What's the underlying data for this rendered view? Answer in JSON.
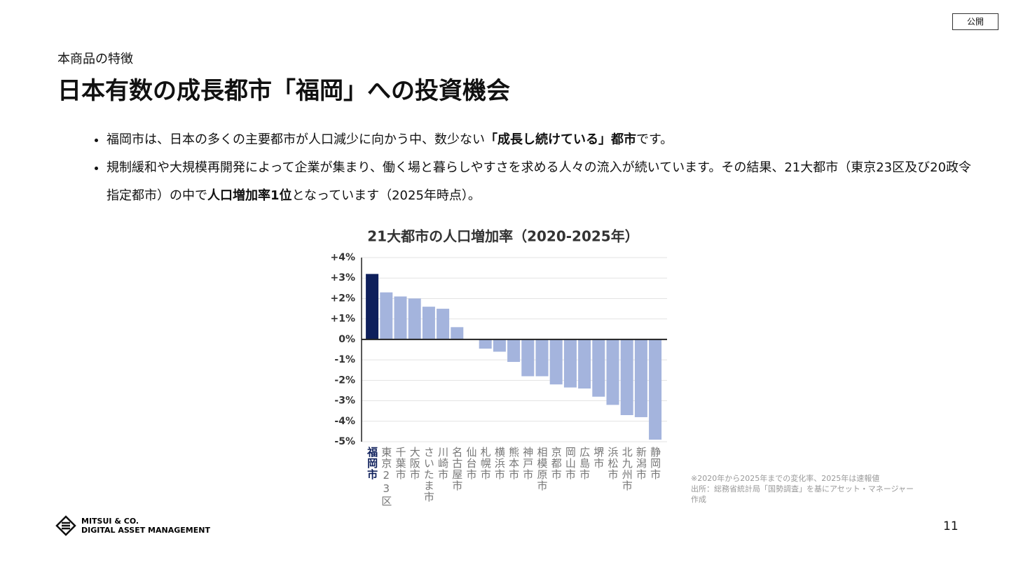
{
  "badge": "公開",
  "header": {
    "kicker": "本商品の特徴",
    "title": "日本有数の成長都市「福岡」への投資機会"
  },
  "bullets": [
    {
      "before": "福岡市は、日本の多くの主要都市が人口減少に向かう中、数少ない",
      "bold": "「成長し続けている」都市",
      "after": "です。"
    },
    {
      "before": "規制緩和や大規模再開発によって企業が集まり、働く場と暮らしやすさを求める人々の流入が続いています。その結果、21大都市（東京23区及び20政令指定都市）の中で",
      "bold": "人口増加率1位",
      "after": "となっています（2025年時点）。"
    }
  ],
  "chart_data": {
    "type": "bar",
    "title": "21大都市の人口増加率（2020-2025年）",
    "categories": [
      "福岡市",
      "東京23区",
      "千葉市",
      "大阪市",
      "さいたま市",
      "川崎市",
      "名古屋市",
      "仙台市",
      "札幌市",
      "横浜市",
      "熊本市",
      "神戸市",
      "相模原市",
      "京都市",
      "岡山市",
      "広島市",
      "堺市",
      "浜松市",
      "北九州市",
      "新潟市",
      "静岡市"
    ],
    "values": [
      3.2,
      2.3,
      2.1,
      2.0,
      1.6,
      1.5,
      0.6,
      0.0,
      -0.45,
      -0.6,
      -1.1,
      -1.8,
      -1.8,
      -2.2,
      -2.35,
      -2.4,
      -2.8,
      -3.2,
      -3.7,
      -3.8,
      -4.9
    ],
    "colors": [
      "#0e1f5b",
      "#a4b4dd",
      "#a4b4dd",
      "#a4b4dd",
      "#a4b4dd",
      "#a4b4dd",
      "#a4b4dd",
      "#a4b4dd",
      "#a4b4dd",
      "#a4b4dd",
      "#a4b4dd",
      "#a4b4dd",
      "#a4b4dd",
      "#a4b4dd",
      "#a4b4dd",
      "#a4b4dd",
      "#a4b4dd",
      "#a4b4dd",
      "#a4b4dd",
      "#a4b4dd",
      "#a4b4dd"
    ],
    "ylim": [
      -5,
      4
    ],
    "yticks": [
      {
        "value": -5,
        "label": "-5%"
      },
      {
        "value": -4,
        "label": "-4%"
      },
      {
        "value": -3,
        "label": "-3%"
      },
      {
        "value": -2,
        "label": "-2%"
      },
      {
        "value": -1,
        "label": "-1%"
      },
      {
        "value": 0,
        "label": "0%"
      },
      {
        "value": 1,
        "label": "+1%"
      },
      {
        "value": 2,
        "label": "+2%"
      },
      {
        "value": 3,
        "label": "+3%"
      },
      {
        "value": 4,
        "label": "+4%"
      }
    ],
    "grid": true
  },
  "notes": [
    "※2020年から2025年までの変化率、2025年は速報値",
    "出所：総務省統計局「国勢調査」を基にアセット・マネージャー作成"
  ],
  "logo": {
    "line1": "MITSUI & CO.",
    "line2": "DIGITAL ASSET MANAGEMENT"
  },
  "page_number": "11"
}
